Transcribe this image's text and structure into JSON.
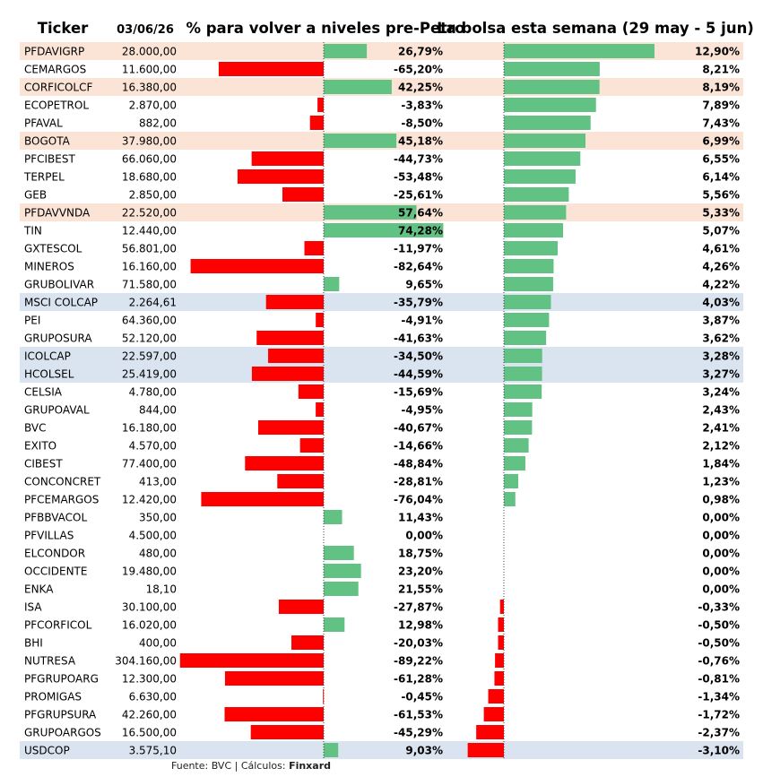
{
  "headers": {
    "ticker": "Ticker",
    "date": "03/06/26",
    "pre_petro": "% para volver a niveles pre-Petro",
    "week": "La bolsa esta semana (29 may - 5 jun)"
  },
  "footer": {
    "source": "Fuente: BVC | Cálculos: ",
    "author": "Finxard"
  },
  "colors": {
    "positive": "#62c283",
    "negative": "#ff0000",
    "highlight_peach": "#fbe4d5",
    "highlight_blue": "#dae3f0",
    "axis_dotted": "#404040"
  },
  "chart_data": {
    "type": "table",
    "columns": [
      "Ticker",
      "03/06/26",
      "% para volver a niveles pre-Petro",
      "La bolsa esta semana (29 may - 5 jun)"
    ],
    "rows": [
      {
        "ticker": "PFDAVIGRP",
        "price": "28.000,00",
        "pre_petro": 26.79,
        "pre_petro_label": "26,79%",
        "week": 12.9,
        "week_label": "12,90%",
        "highlight": "peach"
      },
      {
        "ticker": "CEMARGOS",
        "price": "11.600,00",
        "pre_petro": -65.2,
        "pre_petro_label": "-65,20%",
        "week": 8.21,
        "week_label": "8,21%",
        "highlight": ""
      },
      {
        "ticker": "CORFICOLCF",
        "price": "16.380,00",
        "pre_petro": 42.25,
        "pre_petro_label": "42,25%",
        "week": 8.19,
        "week_label": "8,19%",
        "highlight": "peach"
      },
      {
        "ticker": "ECOPETROL",
        "price": "2.870,00",
        "pre_petro": -3.83,
        "pre_petro_label": "-3,83%",
        "week": 7.89,
        "week_label": "7,89%",
        "highlight": ""
      },
      {
        "ticker": "PFAVAL",
        "price": "882,00",
        "pre_petro": -8.5,
        "pre_petro_label": "-8,50%",
        "week": 7.43,
        "week_label": "7,43%",
        "highlight": ""
      },
      {
        "ticker": "BOGOTA",
        "price": "37.980,00",
        "pre_petro": 45.18,
        "pre_petro_label": "45,18%",
        "week": 6.99,
        "week_label": "6,99%",
        "highlight": "peach"
      },
      {
        "ticker": "PFCIBEST",
        "price": "66.060,00",
        "pre_petro": -44.73,
        "pre_petro_label": "-44,73%",
        "week": 6.55,
        "week_label": "6,55%",
        "highlight": ""
      },
      {
        "ticker": "TERPEL",
        "price": "18.680,00",
        "pre_petro": -53.48,
        "pre_petro_label": "-53,48%",
        "week": 6.14,
        "week_label": "6,14%",
        "highlight": ""
      },
      {
        "ticker": "GEB",
        "price": "2.850,00",
        "pre_petro": -25.61,
        "pre_petro_label": "-25,61%",
        "week": 5.56,
        "week_label": "5,56%",
        "highlight": ""
      },
      {
        "ticker": "PFDAVVNDA",
        "price": "22.520,00",
        "pre_petro": 57.64,
        "pre_petro_label": "57,64%",
        "week": 5.33,
        "week_label": "5,33%",
        "highlight": "peach"
      },
      {
        "ticker": "TIN",
        "price": "12.440,00",
        "pre_petro": 74.28,
        "pre_petro_label": "74,28%",
        "week": 5.07,
        "week_label": "5,07%",
        "highlight": ""
      },
      {
        "ticker": "GXTESCOL",
        "price": "56.801,00",
        "pre_petro": -11.97,
        "pre_petro_label": "-11,97%",
        "week": 4.61,
        "week_label": "4,61%",
        "highlight": ""
      },
      {
        "ticker": "MINEROS",
        "price": "16.160,00",
        "pre_petro": -82.64,
        "pre_petro_label": "-82,64%",
        "week": 4.26,
        "week_label": "4,26%",
        "highlight": ""
      },
      {
        "ticker": "GRUBOLIVAR",
        "price": "71.580,00",
        "pre_petro": 9.65,
        "pre_petro_label": "9,65%",
        "week": 4.22,
        "week_label": "4,22%",
        "highlight": ""
      },
      {
        "ticker": "MSCI COLCAP",
        "price": "2.264,61",
        "pre_petro": -35.79,
        "pre_petro_label": "-35,79%",
        "week": 4.03,
        "week_label": "4,03%",
        "highlight": "blue"
      },
      {
        "ticker": "PEI",
        "price": "64.360,00",
        "pre_petro": -4.91,
        "pre_petro_label": "-4,91%",
        "week": 3.87,
        "week_label": "3,87%",
        "highlight": ""
      },
      {
        "ticker": "GRUPOSURA",
        "price": "52.120,00",
        "pre_petro": -41.63,
        "pre_petro_label": "-41,63%",
        "week": 3.62,
        "week_label": "3,62%",
        "highlight": ""
      },
      {
        "ticker": "ICOLCAP",
        "price": "22.597,00",
        "pre_petro": -34.5,
        "pre_petro_label": "-34,50%",
        "week": 3.28,
        "week_label": "3,28%",
        "highlight": "blue"
      },
      {
        "ticker": "HCOLSEL",
        "price": "25.419,00",
        "pre_petro": -44.59,
        "pre_petro_label": "-44,59%",
        "week": 3.27,
        "week_label": "3,27%",
        "highlight": "blue"
      },
      {
        "ticker": "CELSIA",
        "price": "4.780,00",
        "pre_petro": -15.69,
        "pre_petro_label": "-15,69%",
        "week": 3.24,
        "week_label": "3,24%",
        "highlight": ""
      },
      {
        "ticker": "GRUPOAVAL",
        "price": "844,00",
        "pre_petro": -4.95,
        "pre_petro_label": "-4,95%",
        "week": 2.43,
        "week_label": "2,43%",
        "highlight": ""
      },
      {
        "ticker": "BVC",
        "price": "16.180,00",
        "pre_petro": -40.67,
        "pre_petro_label": "-40,67%",
        "week": 2.41,
        "week_label": "2,41%",
        "highlight": ""
      },
      {
        "ticker": "EXITO",
        "price": "4.570,00",
        "pre_petro": -14.66,
        "pre_petro_label": "-14,66%",
        "week": 2.12,
        "week_label": "2,12%",
        "highlight": ""
      },
      {
        "ticker": "CIBEST",
        "price": "77.400,00",
        "pre_petro": -48.84,
        "pre_petro_label": "-48,84%",
        "week": 1.84,
        "week_label": "1,84%",
        "highlight": ""
      },
      {
        "ticker": "CONCONCRET",
        "price": "413,00",
        "pre_petro": -28.81,
        "pre_petro_label": "-28,81%",
        "week": 1.23,
        "week_label": "1,23%",
        "highlight": ""
      },
      {
        "ticker": "PFCEMARGOS",
        "price": "12.420,00",
        "pre_petro": -76.04,
        "pre_petro_label": "-76,04%",
        "week": 0.98,
        "week_label": "0,98%",
        "highlight": ""
      },
      {
        "ticker": "PFBBVACOL",
        "price": "350,00",
        "pre_petro": 11.43,
        "pre_petro_label": "11,43%",
        "week": 0.0,
        "week_label": "0,00%",
        "highlight": ""
      },
      {
        "ticker": "PFVILLAS",
        "price": "4.500,00",
        "pre_petro": 0.0,
        "pre_petro_label": "0,00%",
        "week": 0.0,
        "week_label": "0,00%",
        "highlight": ""
      },
      {
        "ticker": "ELCONDOR",
        "price": "480,00",
        "pre_petro": 18.75,
        "pre_petro_label": "18,75%",
        "week": 0.0,
        "week_label": "0,00%",
        "highlight": ""
      },
      {
        "ticker": "OCCIDENTE",
        "price": "19.480,00",
        "pre_petro": 23.2,
        "pre_petro_label": "23,20%",
        "week": 0.0,
        "week_label": "0,00%",
        "highlight": ""
      },
      {
        "ticker": "ENKA",
        "price": "18,10",
        "pre_petro": 21.55,
        "pre_petro_label": "21,55%",
        "week": 0.0,
        "week_label": "0,00%",
        "highlight": ""
      },
      {
        "ticker": "ISA",
        "price": "30.100,00",
        "pre_petro": -27.87,
        "pre_petro_label": "-27,87%",
        "week": -0.33,
        "week_label": "-0,33%",
        "highlight": ""
      },
      {
        "ticker": "PFCORFICOL",
        "price": "16.020,00",
        "pre_petro": 12.98,
        "pre_petro_label": "12,98%",
        "week": -0.5,
        "week_label": "-0,50%",
        "highlight": ""
      },
      {
        "ticker": "BHI",
        "price": "400,00",
        "pre_petro": -20.03,
        "pre_petro_label": "-20,03%",
        "week": -0.5,
        "week_label": "-0,50%",
        "highlight": ""
      },
      {
        "ticker": "NUTRESA",
        "price": "304.160,00",
        "pre_petro": -89.22,
        "pre_petro_label": "-89,22%",
        "week": -0.76,
        "week_label": "-0,76%",
        "highlight": ""
      },
      {
        "ticker": "PFGRUPOARG",
        "price": "12.300,00",
        "pre_petro": -61.28,
        "pre_petro_label": "-61,28%",
        "week": -0.81,
        "week_label": "-0,81%",
        "highlight": ""
      },
      {
        "ticker": "PROMIGAS",
        "price": "6.630,00",
        "pre_petro": -0.45,
        "pre_petro_label": "-0,45%",
        "week": -1.34,
        "week_label": "-1,34%",
        "highlight": ""
      },
      {
        "ticker": "PFGRUPSURA",
        "price": "42.260,00",
        "pre_petro": -61.53,
        "pre_petro_label": "-61,53%",
        "week": -1.72,
        "week_label": "-1,72%",
        "highlight": ""
      },
      {
        "ticker": "GRUPOARGOS",
        "price": "16.500,00",
        "pre_petro": -45.29,
        "pre_petro_label": "-45,29%",
        "week": -2.37,
        "week_label": "-2,37%",
        "highlight": ""
      },
      {
        "ticker": "USDCOP",
        "price": "3.575,10",
        "pre_petro": 9.03,
        "pre_petro_label": "9,03%",
        "week": -3.1,
        "week_label": "-3,10%",
        "highlight": "blue"
      }
    ]
  }
}
